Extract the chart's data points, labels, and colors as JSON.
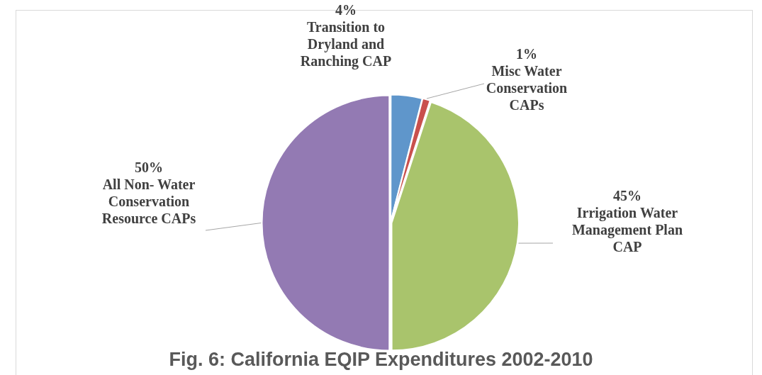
{
  "chart_data": {
    "type": "pie",
    "title": "Fig. 6: California EQIP Expenditures 2002-2010",
    "categories": [
      "Transition to Dryland and Ranching CAP",
      "Misc Water Conservation CAPs",
      "Irrigation Water Management Plan CAP",
      "All Non- Water Conservation Resource CAPs"
    ],
    "values": [
      4,
      1,
      45,
      50
    ],
    "value_labels": [
      "4%",
      "1%",
      "45%",
      "50%"
    ],
    "colors": [
      "#5f96cb",
      "#c9504d",
      "#a9c46c",
      "#937ab3"
    ],
    "legend": false
  }
}
